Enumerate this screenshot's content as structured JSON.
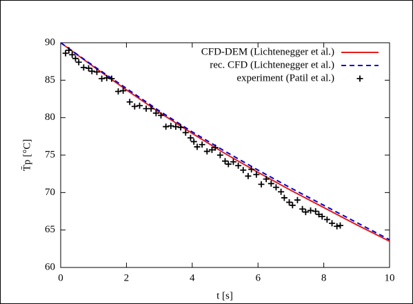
{
  "chart_data": {
    "type": "line",
    "xlabel": "t [s]",
    "ylabel": "T̄p [°C]",
    "xlim": [
      0,
      10
    ],
    "ylim": [
      60,
      90
    ],
    "xticks": [
      0,
      2,
      4,
      6,
      8,
      10
    ],
    "yticks": [
      60,
      65,
      70,
      75,
      80,
      85,
      90
    ],
    "legend": "top-right",
    "series": [
      {
        "name": "CFD-DEM (Lichtenegger et al.)",
        "color": "#e41a1c",
        "dash": false,
        "x": [
          0,
          1,
          2,
          3,
          4,
          5,
          6,
          7,
          8,
          9,
          10
        ],
        "values": [
          90,
          86.8,
          83.7,
          80.7,
          77.9,
          75.2,
          72.7,
          70.3,
          68.0,
          65.7,
          63.5
        ]
      },
      {
        "name": "rec. CFD (Lichtenegger et al.)",
        "color": "#0000cc",
        "dash": true,
        "x": [
          0,
          1,
          2,
          3,
          4,
          5,
          6,
          7,
          8,
          9,
          10
        ],
        "values": [
          90,
          86.9,
          83.9,
          80.9,
          78.1,
          75.5,
          73.0,
          70.6,
          68.3,
          66.0,
          63.7
        ]
      },
      {
        "name": "experiment (Patil et al.)",
        "color": "#000000",
        "marker": "+",
        "x": [
          0.15,
          0.25,
          0.35,
          0.45,
          0.55,
          0.7,
          0.85,
          0.95,
          1.1,
          1.25,
          1.4,
          1.55,
          1.75,
          1.9,
          2.1,
          2.25,
          2.4,
          2.6,
          2.75,
          2.9,
          3.05,
          3.2,
          3.35,
          3.5,
          3.65,
          3.8,
          3.95,
          4.05,
          4.15,
          4.3,
          4.45,
          4.6,
          4.7,
          4.85,
          5.0,
          5.1,
          5.25,
          5.4,
          5.55,
          5.7,
          5.8,
          5.95,
          6.1,
          6.25,
          6.4,
          6.55,
          6.7,
          6.8,
          6.95,
          7.05,
          7.2,
          7.35,
          7.45,
          7.6,
          7.75,
          7.85,
          7.95,
          8.1,
          8.25,
          8.4,
          8.5
        ],
        "values": [
          88.6,
          89.0,
          88.4,
          87.9,
          87.4,
          86.7,
          86.6,
          86.2,
          86.1,
          85.2,
          85.3,
          85.2,
          83.5,
          83.6,
          82.1,
          81.5,
          81.6,
          81.2,
          81.2,
          80.6,
          80.3,
          78.8,
          78.9,
          78.8,
          78.7,
          78.0,
          77.3,
          76.8,
          76.1,
          76.4,
          75.5,
          75.7,
          76.0,
          75.0,
          74.2,
          73.8,
          74.1,
          73.6,
          73.0,
          72.2,
          73.1,
          72.4,
          71.1,
          71.8,
          71.2,
          70.7,
          70.1,
          69.3,
          68.7,
          68.3,
          69.0,
          67.8,
          67.4,
          67.6,
          67.5,
          67.1,
          66.8,
          66.4,
          65.9,
          65.5,
          65.6
        ]
      }
    ]
  }
}
